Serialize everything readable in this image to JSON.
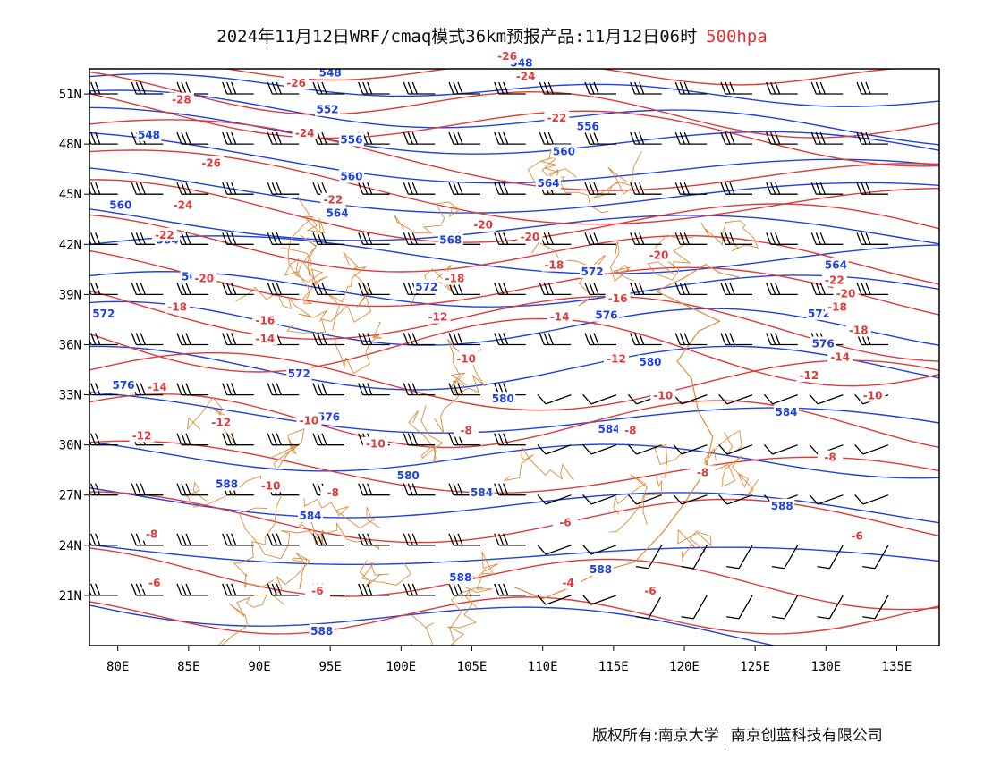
{
  "title": {
    "text": "2024年11月12日WRF/cmaq模式36km预报产品:11月12日06时",
    "level": "500hpa"
  },
  "footer": {
    "left": "版权所有:南京大学",
    "right": "南京创蓝科技有限公司"
  },
  "colors": {
    "height_contour": "#2040e0",
    "temp_contour": "#e03a3a",
    "border": "#e08a3a",
    "barb": "#000000"
  },
  "map": {
    "lon_range": [
      78,
      138
    ],
    "lat_range": [
      18,
      52.5
    ],
    "lon_ticks": [
      "80E",
      "85E",
      "90E",
      "95E",
      "100E",
      "105E",
      "110E",
      "115E",
      "120E",
      "125E",
      "130E",
      "135E"
    ],
    "lat_ticks": [
      "51N",
      "48N",
      "45N",
      "42N",
      "39N",
      "36N",
      "33N",
      "30N",
      "27N",
      "24N",
      "21N"
    ]
  },
  "height_labels": [
    {
      "text": "548",
      "lon": 95,
      "lat": 52.2
    },
    {
      "text": "548",
      "lon": 108.5,
      "lat": 52.8
    },
    {
      "text": "552",
      "lon": 94.8,
      "lat": 50.0
    },
    {
      "text": "548",
      "lon": 82.2,
      "lat": 48.5
    },
    {
      "text": "556",
      "lon": 96.5,
      "lat": 48.2
    },
    {
      "text": "556",
      "lon": 113.2,
      "lat": 49.0
    },
    {
      "text": "560",
      "lon": 96.5,
      "lat": 46.0
    },
    {
      "text": "560",
      "lon": 111.5,
      "lat": 47.5
    },
    {
      "text": "560",
      "lon": 80.2,
      "lat": 44.3
    },
    {
      "text": "564",
      "lon": 95.5,
      "lat": 43.8
    },
    {
      "text": "564",
      "lon": 110.4,
      "lat": 45.6
    },
    {
      "text": "564",
      "lon": 83.5,
      "lat": 42.2
    },
    {
      "text": "568",
      "lon": 103.5,
      "lat": 42.2
    },
    {
      "text": "568",
      "lon": 85.3,
      "lat": 40.0
    },
    {
      "text": "564",
      "lon": 130.7,
      "lat": 40.7
    },
    {
      "text": "572",
      "lon": 101.8,
      "lat": 39.4
    },
    {
      "text": "572",
      "lon": 113.5,
      "lat": 40.3
    },
    {
      "text": "572",
      "lon": 79,
      "lat": 37.8
    },
    {
      "text": "576",
      "lon": 114.5,
      "lat": 37.7
    },
    {
      "text": "572",
      "lon": 129.5,
      "lat": 37.8
    },
    {
      "text": "576",
      "lon": 129.8,
      "lat": 36.0
    },
    {
      "text": "572",
      "lon": 92.8,
      "lat": 34.2
    },
    {
      "text": "576",
      "lon": 80.4,
      "lat": 33.5
    },
    {
      "text": "580",
      "lon": 117.6,
      "lat": 34.9
    },
    {
      "text": "580",
      "lon": 107.2,
      "lat": 32.7
    },
    {
      "text": "576",
      "lon": 94.9,
      "lat": 31.6
    },
    {
      "text": "584",
      "lon": 127.2,
      "lat": 31.9
    },
    {
      "text": "584",
      "lon": 114.7,
      "lat": 30.9
    },
    {
      "text": "580",
      "lon": 100.5,
      "lat": 28.1
    },
    {
      "text": "588",
      "lon": 87.7,
      "lat": 27.6
    },
    {
      "text": "584",
      "lon": 105.7,
      "lat": 27.1
    },
    {
      "text": "584",
      "lon": 93.6,
      "lat": 25.7
    },
    {
      "text": "588",
      "lon": 126.9,
      "lat": 26.3
    },
    {
      "text": "588",
      "lon": 104.2,
      "lat": 22.0
    },
    {
      "text": "588",
      "lon": 114.1,
      "lat": 22.5
    },
    {
      "text": "588",
      "lon": 94.4,
      "lat": 18.8
    }
  ],
  "temp_labels": [
    {
      "text": "-26",
      "lon": 92.6,
      "lat": 51.6
    },
    {
      "text": "-26",
      "lon": 107.5,
      "lat": 53.2
    },
    {
      "text": "-24",
      "lon": 108.8,
      "lat": 52.0
    },
    {
      "text": "-28",
      "lon": 84.5,
      "lat": 50.6
    },
    {
      "text": "-22",
      "lon": 111,
      "lat": 49.5
    },
    {
      "text": "-24",
      "lon": 93.2,
      "lat": 48.6
    },
    {
      "text": "-26",
      "lon": 86.6,
      "lat": 46.8
    },
    {
      "text": "-22",
      "lon": 95.2,
      "lat": 44.6
    },
    {
      "text": "-24",
      "lon": 84.6,
      "lat": 44.3
    },
    {
      "text": "-20",
      "lon": 105.8,
      "lat": 43.1
    },
    {
      "text": "-20",
      "lon": 109.1,
      "lat": 42.4
    },
    {
      "text": "-22",
      "lon": 83.3,
      "lat": 42.5
    },
    {
      "text": "-20",
      "lon": 118.2,
      "lat": 41.3
    },
    {
      "text": "-18",
      "lon": 110.8,
      "lat": 40.7
    },
    {
      "text": "-20",
      "lon": 86.1,
      "lat": 39.9
    },
    {
      "text": "-18",
      "lon": 103.8,
      "lat": 39.9
    },
    {
      "text": "-22",
      "lon": 130.6,
      "lat": 39.8
    },
    {
      "text": "-20",
      "lon": 131.4,
      "lat": 39.0
    },
    {
      "text": "-16",
      "lon": 115.3,
      "lat": 38.7
    },
    {
      "text": "-18",
      "lon": 84.2,
      "lat": 38.2
    },
    {
      "text": "-18",
      "lon": 130.8,
      "lat": 38.2
    },
    {
      "text": "-12",
      "lon": 102.6,
      "lat": 37.6
    },
    {
      "text": "-14",
      "lon": 111.2,
      "lat": 37.6
    },
    {
      "text": "-16",
      "lon": 90.4,
      "lat": 37.4
    },
    {
      "text": "-18",
      "lon": 132.3,
      "lat": 36.8
    },
    {
      "text": "-14",
      "lon": 90.4,
      "lat": 36.3
    },
    {
      "text": "-10",
      "lon": 104.6,
      "lat": 35.1
    },
    {
      "text": "-12",
      "lon": 115.2,
      "lat": 35.1
    },
    {
      "text": "-14",
      "lon": 131.0,
      "lat": 35.2
    },
    {
      "text": "-12",
      "lon": 128.8,
      "lat": 34.1
    },
    {
      "text": "-14",
      "lon": 82.8,
      "lat": 33.4
    },
    {
      "text": "-10",
      "lon": 118.5,
      "lat": 32.9
    },
    {
      "text": "-10",
      "lon": 133.3,
      "lat": 32.9
    },
    {
      "text": "-12",
      "lon": 87.3,
      "lat": 31.3
    },
    {
      "text": "-10",
      "lon": 93.5,
      "lat": 31.4
    },
    {
      "text": "-8",
      "lon": 104.6,
      "lat": 30.8
    },
    {
      "text": "-8",
      "lon": 116.2,
      "lat": 30.8
    },
    {
      "text": "-12",
      "lon": 81.7,
      "lat": 30.5
    },
    {
      "text": "-10",
      "lon": 98.2,
      "lat": 30.0
    },
    {
      "text": "-8",
      "lon": 130.3,
      "lat": 29.2
    },
    {
      "text": "-10",
      "lon": 90.8,
      "lat": 27.5
    },
    {
      "text": "-8",
      "lon": 95.2,
      "lat": 27.1
    },
    {
      "text": "-8",
      "lon": 121.3,
      "lat": 28.3
    },
    {
      "text": "-6",
      "lon": 111.6,
      "lat": 25.3
    },
    {
      "text": "-8",
      "lon": 82.4,
      "lat": 24.6
    },
    {
      "text": "-6",
      "lon": 132.2,
      "lat": 24.5
    },
    {
      "text": "-6",
      "lon": 82.6,
      "lat": 21.7
    },
    {
      "text": "-6",
      "lon": 94.1,
      "lat": 21.2
    },
    {
      "text": "-4",
      "lon": 111.8,
      "lat": 21.7
    },
    {
      "text": "-6",
      "lon": 117.6,
      "lat": 21.2
    }
  ]
}
